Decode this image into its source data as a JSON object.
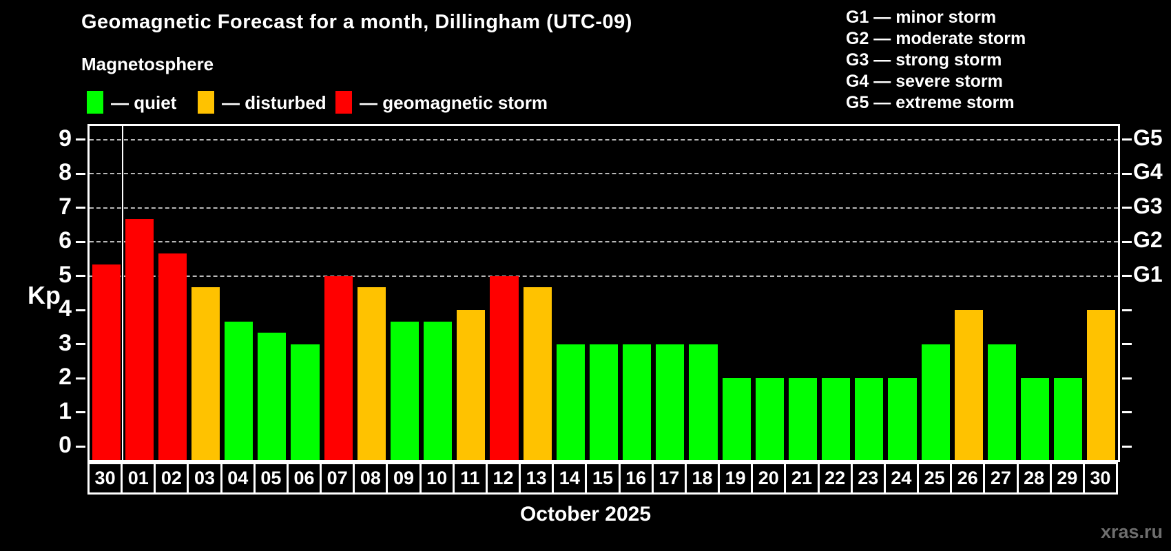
{
  "header": {
    "title": "Geomagnetic Forecast for a month, Dillingham (UTC-09)",
    "subtitle": "Magnetosphere"
  },
  "legend": {
    "items": [
      {
        "label": "— quiet",
        "status": "quiet"
      },
      {
        "label": "— disturbed",
        "status": "disturbed"
      },
      {
        "label": "— geomagnetic storm",
        "status": "storm"
      }
    ]
  },
  "storm_scale": {
    "items": [
      "G1 — minor storm",
      "G2 — moderate storm",
      "G3 — strong storm",
      "G4 — severe storm",
      "G5 — extreme storm"
    ]
  },
  "colors": {
    "quiet": "#00ff00",
    "disturbed": "#ffc200",
    "storm": "#ff0000",
    "axis": "#ffffff",
    "grid": "#b9b9b9",
    "background": "#000000",
    "watermark": "#6e6e6e"
  },
  "footer": {
    "caption": "October 2025",
    "watermark": "xras.ru"
  },
  "chart_data": {
    "type": "bar",
    "title": "Geomagnetic Forecast for a month, Dillingham (UTC-09)",
    "xlabel": "October 2025",
    "ylabel": "Kp",
    "ylim": [
      -0.4,
      9.4
    ],
    "y_ticks": [
      0,
      1,
      2,
      3,
      4,
      5,
      6,
      7,
      8,
      9
    ],
    "grid": "dashed horizontal at Kp 5-9 only",
    "gridlines": [
      {
        "kp": 5,
        "right_label": "G1"
      },
      {
        "kp": 6,
        "right_label": "G2"
      },
      {
        "kp": 7,
        "right_label": "G3"
      },
      {
        "kp": 8,
        "right_label": "G4"
      },
      {
        "kp": 9,
        "right_label": "G5"
      }
    ],
    "separator_after_index": 0,
    "categories": [
      "30",
      "01",
      "02",
      "03",
      "04",
      "05",
      "06",
      "07",
      "08",
      "09",
      "10",
      "11",
      "12",
      "13",
      "14",
      "15",
      "16",
      "17",
      "18",
      "19",
      "20",
      "21",
      "22",
      "23",
      "24",
      "25",
      "26",
      "27",
      "28",
      "29",
      "30"
    ],
    "values": [
      5.33,
      6.67,
      5.67,
      4.67,
      3.67,
      3.33,
      3,
      5,
      4.67,
      3.67,
      3.67,
      4,
      5,
      4.67,
      3,
      3,
      3,
      3,
      3,
      2,
      2,
      2,
      2,
      2,
      2,
      3,
      4,
      3,
      2,
      2,
      4
    ],
    "statuses": [
      "storm",
      "storm",
      "storm",
      "disturbed",
      "quiet",
      "quiet",
      "quiet",
      "storm",
      "disturbed",
      "quiet",
      "quiet",
      "disturbed",
      "storm",
      "disturbed",
      "quiet",
      "quiet",
      "quiet",
      "quiet",
      "quiet",
      "quiet",
      "quiet",
      "quiet",
      "quiet",
      "quiet",
      "quiet",
      "quiet",
      "disturbed",
      "quiet",
      "quiet",
      "quiet",
      "disturbed"
    ]
  }
}
